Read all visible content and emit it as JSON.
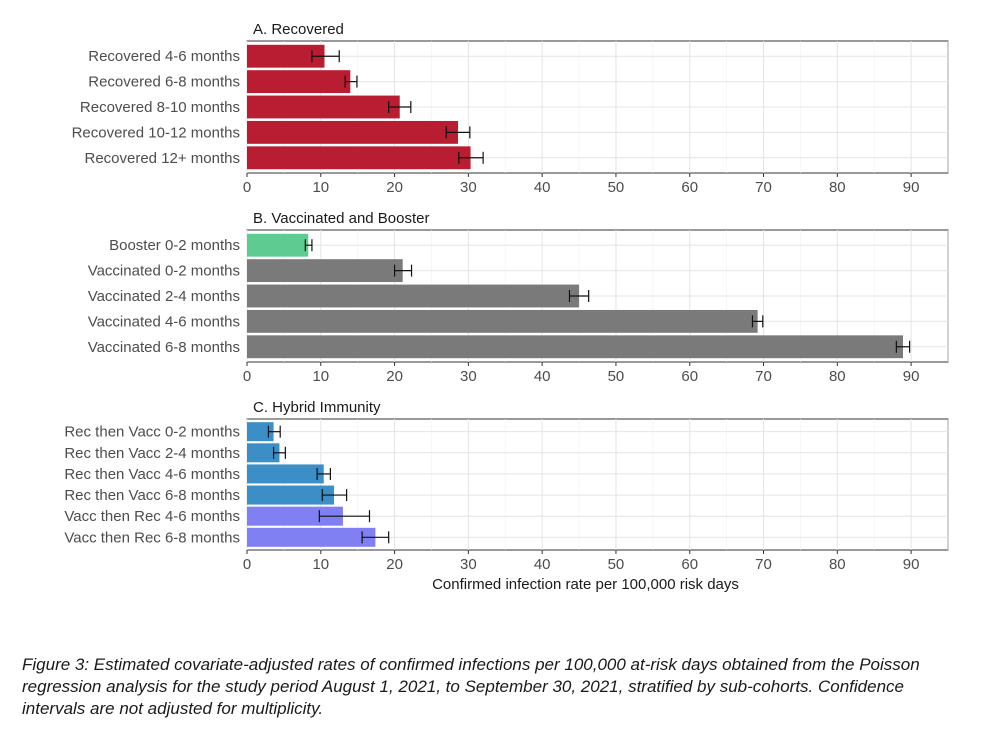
{
  "chart_data": [
    {
      "type": "bar",
      "orientation": "horizontal",
      "title": "A. Recovered",
      "categories": [
        "Recovered 4-6 months",
        "Recovered 6-8 months",
        "Recovered 8-10 months",
        "Recovered 10-12 months",
        "Recovered 12+ months"
      ],
      "values": [
        10.5,
        14.0,
        20.7,
        28.6,
        30.3
      ],
      "ci_low": [
        8.8,
        13.3,
        19.2,
        27.0,
        28.7
      ],
      "ci_high": [
        12.5,
        14.9,
        22.2,
        30.2,
        32.0
      ],
      "colors": [
        "#b81d32",
        "#b81d32",
        "#b81d32",
        "#b81d32",
        "#b81d32"
      ],
      "xlim": [
        0,
        95
      ],
      "xticks": [
        "0",
        "10",
        "20",
        "30",
        "40",
        "50",
        "60",
        "70",
        "80",
        "90"
      ],
      "xlabel": ""
    },
    {
      "type": "bar",
      "orientation": "horizontal",
      "title": "B. Vaccinated and Booster",
      "categories": [
        "Booster 0-2 months",
        "Vaccinated 0-2 months",
        "Vaccinated 2-4 months",
        "Vaccinated 4-6 months",
        "Vaccinated 6-8 months"
      ],
      "values": [
        8.3,
        21.1,
        45.0,
        69.2,
        88.9
      ],
      "ci_low": [
        7.9,
        20.0,
        43.7,
        68.5,
        88.0
      ],
      "ci_high": [
        8.8,
        22.3,
        46.3,
        69.9,
        89.8
      ],
      "colors": [
        "#5ecb91",
        "#7a7a7a",
        "#7a7a7a",
        "#7a7a7a",
        "#7a7a7a"
      ],
      "xlim": [
        0,
        95
      ],
      "xticks": [
        "0",
        "10",
        "20",
        "30",
        "40",
        "50",
        "60",
        "70",
        "80",
        "90"
      ],
      "xlabel": ""
    },
    {
      "type": "bar",
      "orientation": "horizontal",
      "title": "C. Hybrid Immunity",
      "categories": [
        "Rec then Vacc 0-2 months",
        "Rec then Vacc 2-4 months",
        "Rec then Vacc 4-6 months",
        "Rec then Vacc 6-8 months",
        "Vacc then Rec 4-6 months",
        "Vacc then Rec 6-8 months"
      ],
      "values": [
        3.6,
        4.4,
        10.4,
        11.8,
        13.0,
        17.4
      ],
      "ci_low": [
        2.9,
        3.6,
        9.5,
        10.2,
        9.8,
        15.6
      ],
      "ci_high": [
        4.5,
        5.2,
        11.3,
        13.5,
        16.6,
        19.2
      ],
      "colors": [
        "#3b8fc6",
        "#3b8fc6",
        "#3b8fc6",
        "#3b8fc6",
        "#8080f3",
        "#8080f3"
      ],
      "xlim": [
        0,
        95
      ],
      "xticks": [
        "0",
        "10",
        "20",
        "30",
        "40",
        "50",
        "60",
        "70",
        "80",
        "90"
      ],
      "xlabel": "Confirmed infection rate per 100,000 risk days"
    }
  ],
  "caption": "Figure 3: Estimated covariate-adjusted rates of confirmed infections per 100,000 at-risk days obtained from the Poisson regression analysis for the study period August 1, 2021, to September 30, 2021, stratified by sub-cohorts. Confidence intervals are not adjusted for multiplicity."
}
